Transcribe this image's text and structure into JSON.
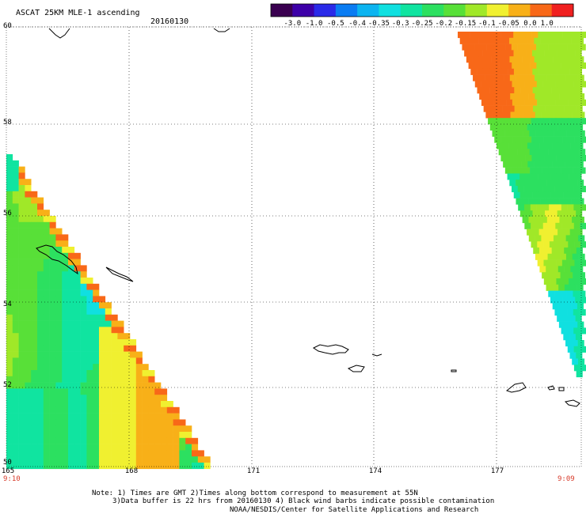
{
  "header": {
    "title": "ASCAT 25KM MLE-1 ascending",
    "date": "20160130"
  },
  "colorbar": {
    "labels": [
      "-3.0",
      "-1.0",
      "-0.5",
      "-0.4",
      "-0.35",
      "-0.3",
      "-0.25",
      "-0.2",
      "-0.15",
      "-0.1",
      "-0.05",
      "0.0",
      "1.0"
    ],
    "colors": [
      "#3a0050",
      "#3d00a8",
      "#2a2ae8",
      "#0a7cf2",
      "#0cb4f0",
      "#10e0e0",
      "#10e4a0",
      "#2ce060",
      "#58e038",
      "#a0e828",
      "#f0f030",
      "#f8b018",
      "#f86818",
      "#f02020"
    ]
  },
  "axes": {
    "lat_labels": [
      "60",
      "58",
      "56",
      "54",
      "52",
      "50"
    ],
    "lon_labels": [
      "165",
      "168",
      "171",
      "174",
      "177"
    ]
  },
  "times": {
    "left": "9:10",
    "right": "9:09"
  },
  "notes": {
    "line1": "Note: 1) Times are GMT 2)Times along bottom correspond to measurement at 55N",
    "line2": "3)Data buffer is 22 hrs from 20160130 4) Black wind barbs indicate possible contamination",
    "line3": "NOAA/NESDIS/Center for Satellite Applications and Research"
  }
}
